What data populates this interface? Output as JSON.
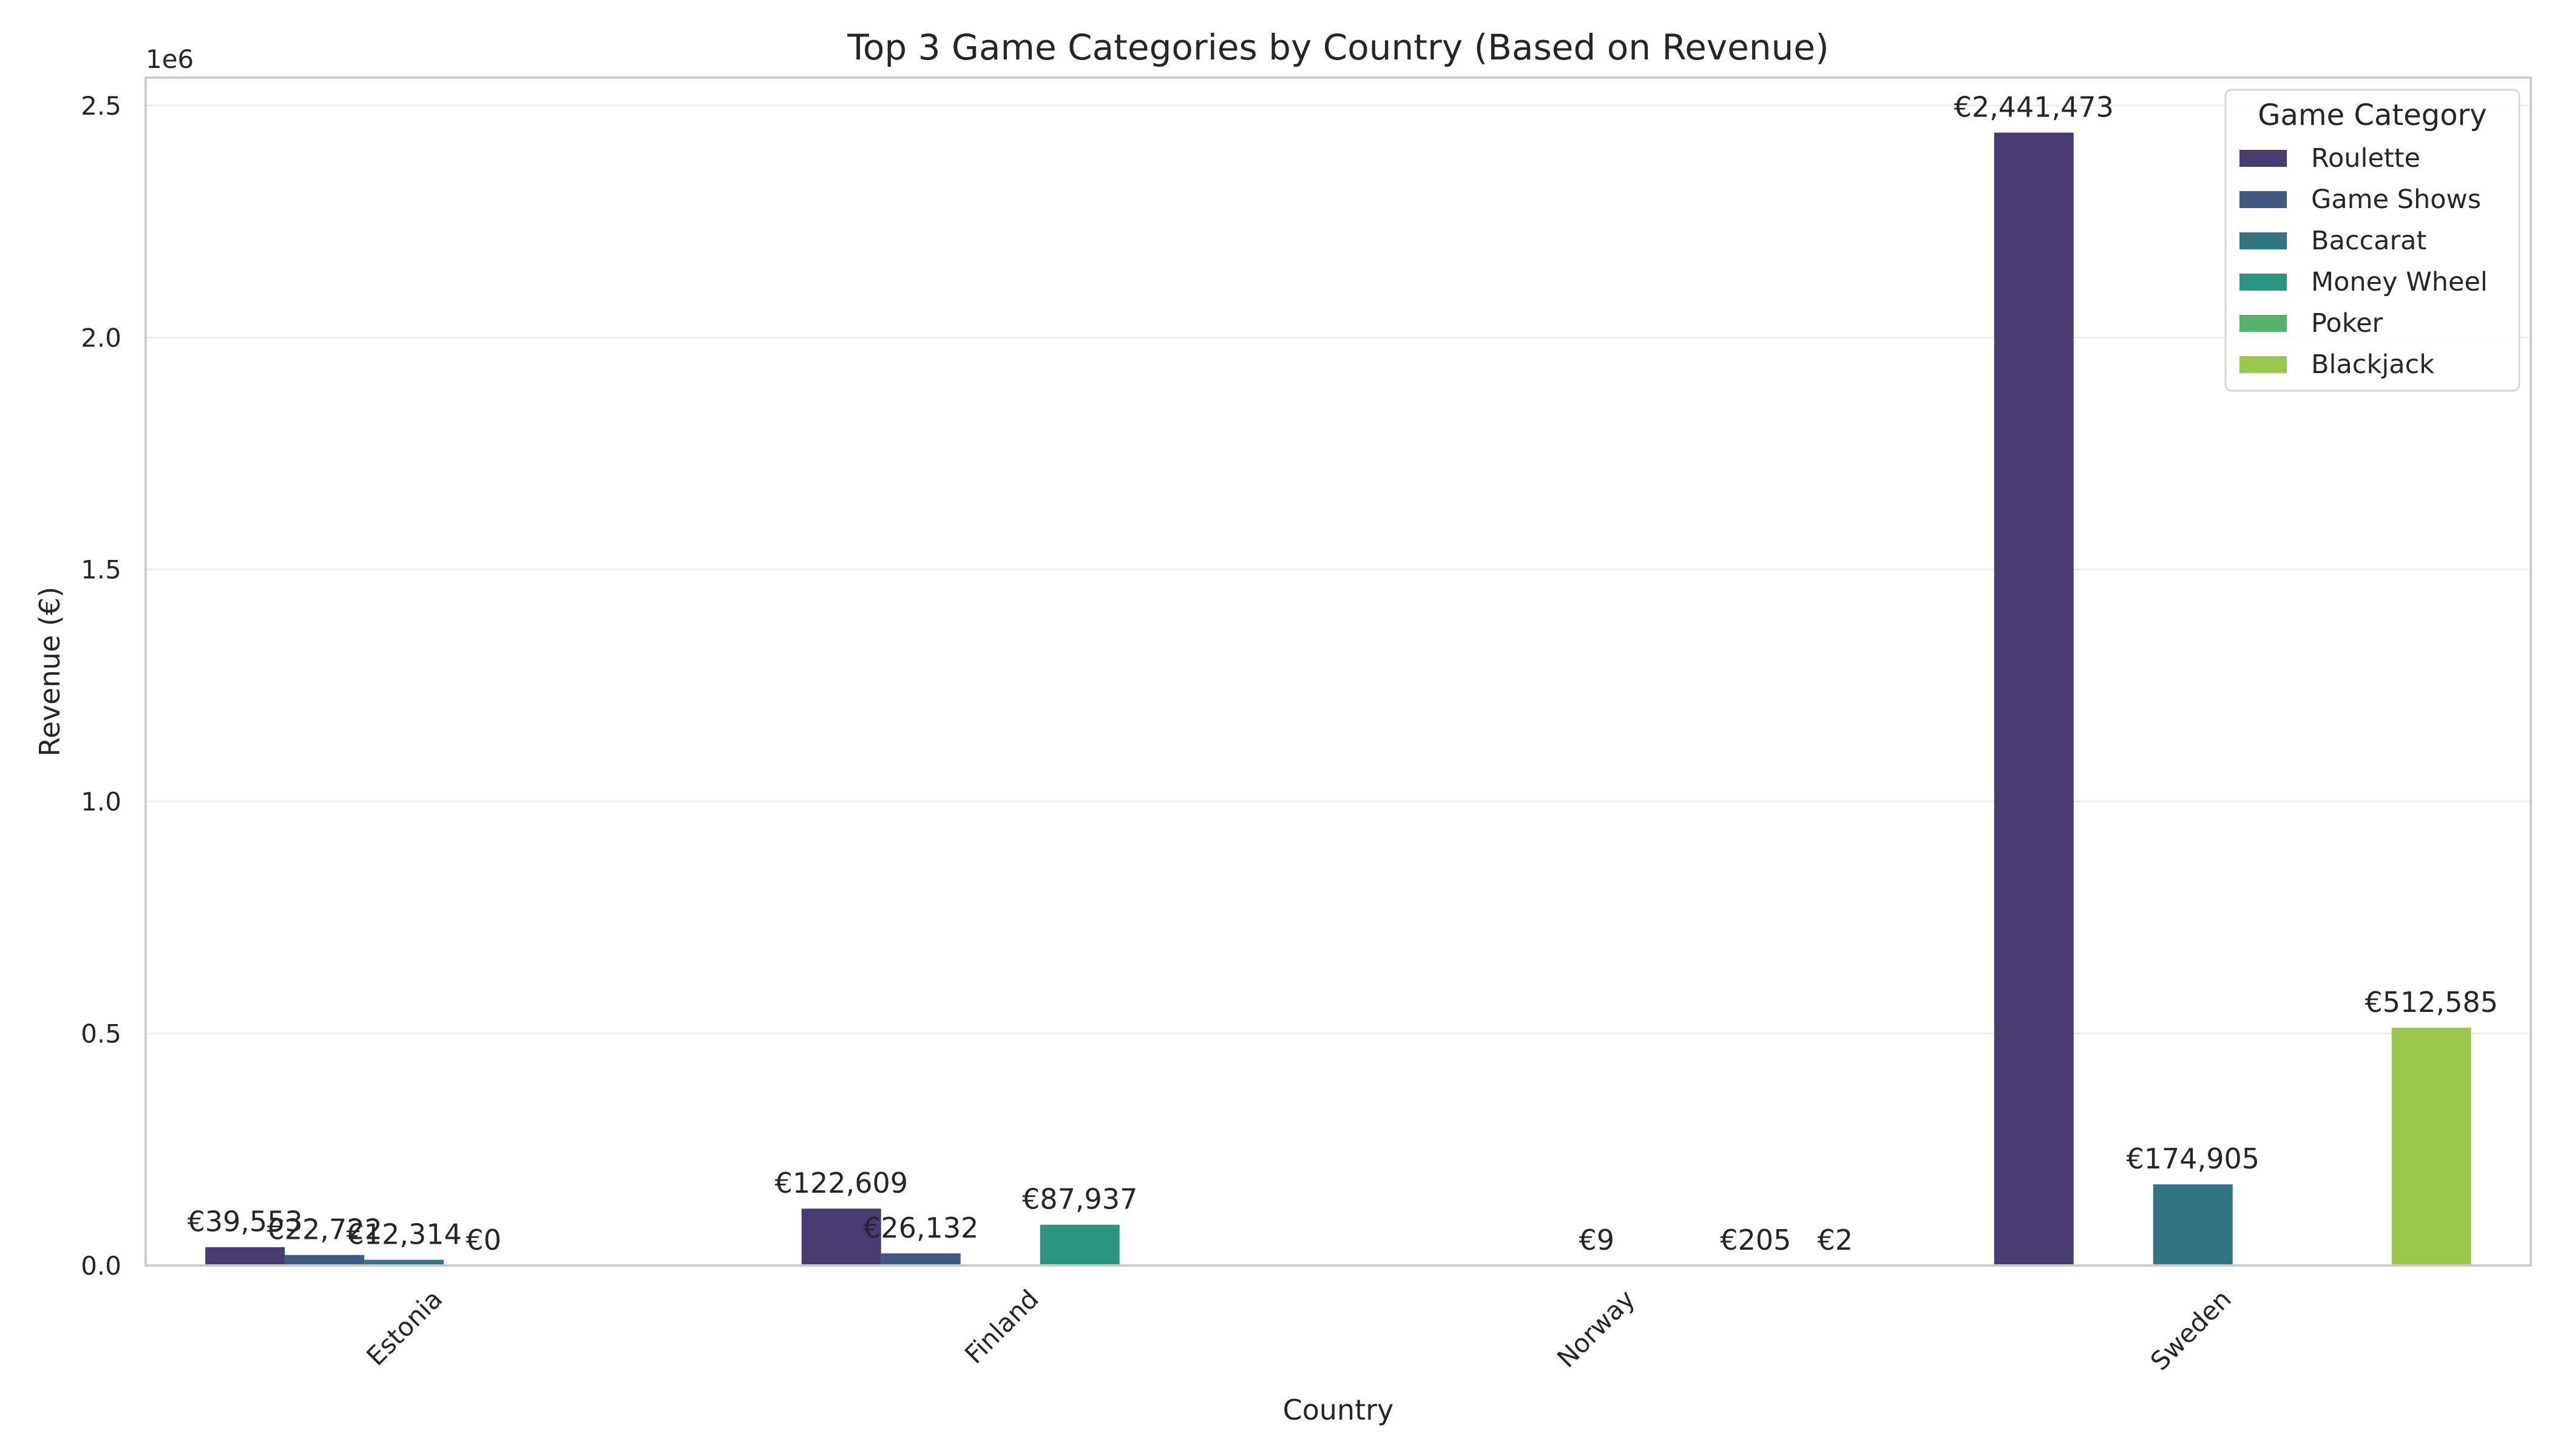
{
  "chart_data": {
    "type": "bar",
    "title": "Top 3 Game Categories by Country (Based on Revenue)",
    "xlabel": "Country",
    "ylabel": "Revenue (€)",
    "y_offset_label": "1e6",
    "ylim": [
      0,
      2560000
    ],
    "yticks": [
      {
        "value": 0,
        "label": "0.0"
      },
      {
        "value": 500000,
        "label": "0.5"
      },
      {
        "value": 1000000,
        "label": "1.0"
      },
      {
        "value": 1500000,
        "label": "1.5"
      },
      {
        "value": 2000000,
        "label": "2.0"
      },
      {
        "value": 2500000,
        "label": "2.5"
      }
    ],
    "grid": true,
    "legend": {
      "title": "Game Category",
      "placement": "top-right"
    },
    "categories": [
      "Estonia",
      "Finland",
      "Norway",
      "Sweden"
    ],
    "series": [
      {
        "name": "Roulette",
        "color": "#483A73",
        "values": [
          39553,
          122609,
          null,
          2441473
        ],
        "labels": [
          "€39,553",
          "€122,609",
          null,
          "€2,441,473"
        ]
      },
      {
        "name": "Game Shows",
        "color": "#3E5A84",
        "values": [
          22722,
          26132,
          null,
          null
        ],
        "labels": [
          "€22,722",
          "€26,132",
          null,
          null
        ]
      },
      {
        "name": "Baccarat",
        "color": "#307680",
        "values": [
          12314,
          null,
          9,
          174905
        ],
        "labels": [
          "€12,314",
          null,
          "€9",
          "€174,905"
        ]
      },
      {
        "name": "Money Wheel",
        "color": "#2A9580",
        "values": [
          0,
          87937,
          null,
          null
        ],
        "labels": [
          "€0",
          "€87,937",
          null,
          null
        ]
      },
      {
        "name": "Poker",
        "color": "#55B36C",
        "values": [
          null,
          null,
          205,
          null
        ],
        "labels": [
          null,
          null,
          "€205",
          null
        ]
      },
      {
        "name": "Blackjack",
        "color": "#9BC84A",
        "values": [
          null,
          null,
          2,
          512585
        ],
        "labels": [
          null,
          null,
          "€2",
          "€512,585"
        ]
      }
    ]
  }
}
